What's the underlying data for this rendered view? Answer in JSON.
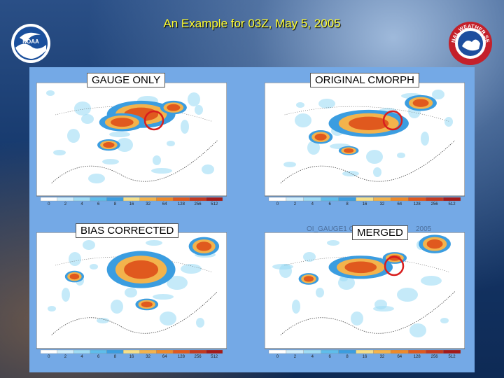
{
  "slide": {
    "title": "An Example  for 03Z, May 5, 2005",
    "logos": {
      "left": "NOAA",
      "right": "NATIONAL WEATHER SERVICE"
    }
  },
  "panels": [
    {
      "label": "GAUGE ONLY",
      "ghost": ""
    },
    {
      "label": "ORIGINAL CMORPH",
      "ghost": ""
    },
    {
      "label": "BIAS CORRECTED",
      "ghost": ""
    },
    {
      "label": "MERGED",
      "ghost": "OI_GAUGE1 C",
      "ghost2": "2005"
    }
  ],
  "colorbar_ticks": [
    "0",
    "2",
    "4",
    "6",
    "8",
    "16",
    "32",
    "64",
    "128",
    "256",
    "512"
  ],
  "colors": {
    "title": "#ffff33",
    "panel_bg": "#74a9e6",
    "highlight_circle": "#d81e1e",
    "precip_scale": [
      "#ffffff",
      "#d0eefb",
      "#9fdcf5",
      "#5fbdeb",
      "#3b9de0",
      "#f5e08a",
      "#f3b34c",
      "#ee8a2a",
      "#e0591e",
      "#c43a20",
      "#a31a1a"
    ]
  }
}
